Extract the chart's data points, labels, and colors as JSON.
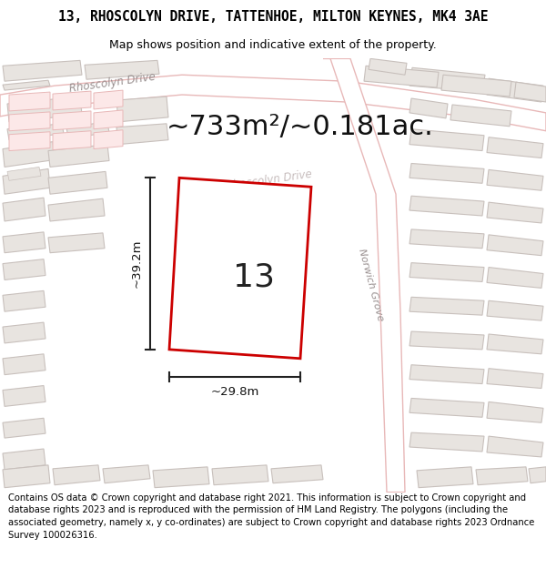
{
  "title_line1": "13, RHOSCOLYN DRIVE, TATTENHOE, MILTON KEYNES, MK4 3AE",
  "title_line2": "Map shows position and indicative extent of the property.",
  "area_text": "~733m²/~0.181ac.",
  "number_label": "13",
  "dim_width": "~29.8m",
  "dim_height": "~39.2m",
  "footer_text": "Contains OS data © Crown copyright and database right 2021. This information is subject to Crown copyright and database rights 2023 and is reproduced with the permission of HM Land Registry. The polygons (including the associated geometry, namely x, y co-ordinates) are subject to Crown copyright and database rights 2023 Ordnance Survey 100026316.",
  "map_bg": "#f5f0f0",
  "road_fill": "#ffffff",
  "road_outline": "#e8b8b8",
  "building_fill": "#e8e4e0",
  "building_outline": "#c8c0bc",
  "plot_outline_fill": "#f5eded",
  "plot_color": "#cc0000",
  "dim_line_color": "#222222",
  "street_label_color": "#999090",
  "title_fontsize": 10.5,
  "subtitle_fontsize": 9,
  "area_fontsize": 22,
  "number_fontsize": 26,
  "dim_fontsize": 9.5,
  "footer_fontsize": 7.2
}
